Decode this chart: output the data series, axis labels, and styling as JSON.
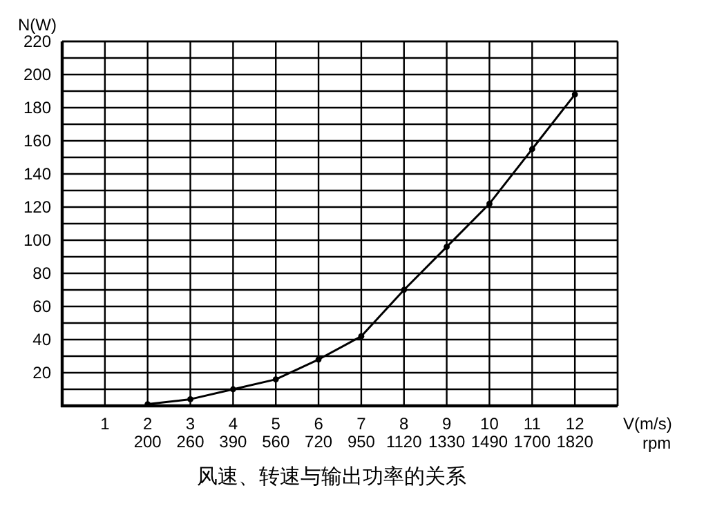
{
  "chart_data": {
    "type": "line",
    "title": "风速、转速与输出功率的关系",
    "xlabel": "V(m/s)",
    "x2label": "rpm",
    "ylabel": "N(W)",
    "x": [
      2,
      3,
      4,
      5,
      6,
      7,
      8,
      9,
      10,
      11,
      12
    ],
    "series": [
      {
        "color": "#000000",
        "values": [
          1,
          4,
          10,
          16,
          28,
          42,
          70,
          96,
          122,
          155,
          188
        ]
      }
    ],
    "xlim": [
      0,
      13
    ],
    "xticks": [
      1,
      2,
      3,
      4,
      5,
      6,
      7,
      8,
      9,
      10,
      11,
      12,
      {
        "value": 13,
        "label": null
      }
    ],
    "annotations": [
      "200",
      "260",
      "390",
      "560",
      "720",
      "950",
      "1120",
      "1330",
      "1490",
      "1700",
      "1820"
    ],
    "ylim": [
      0,
      220
    ],
    "yticks": [
      {
        "value": 10,
        "label": null
      },
      20,
      {
        "value": 30,
        "label": null
      },
      40,
      {
        "value": 50,
        "label": null
      },
      60,
      {
        "value": 70,
        "label": null
      },
      80,
      {
        "value": 90,
        "label": null
      },
      100,
      {
        "value": 110,
        "label": null
      },
      120,
      {
        "value": 130,
        "label": null
      },
      140,
      {
        "value": 150,
        "label": null
      },
      160,
      {
        "value": 170,
        "label": null
      },
      180,
      {
        "value": 190,
        "label": null
      },
      200,
      {
        "value": 210,
        "label": null
      },
      220
    ],
    "grid": true,
    "marker": "circle",
    "line_style": "solid"
  }
}
